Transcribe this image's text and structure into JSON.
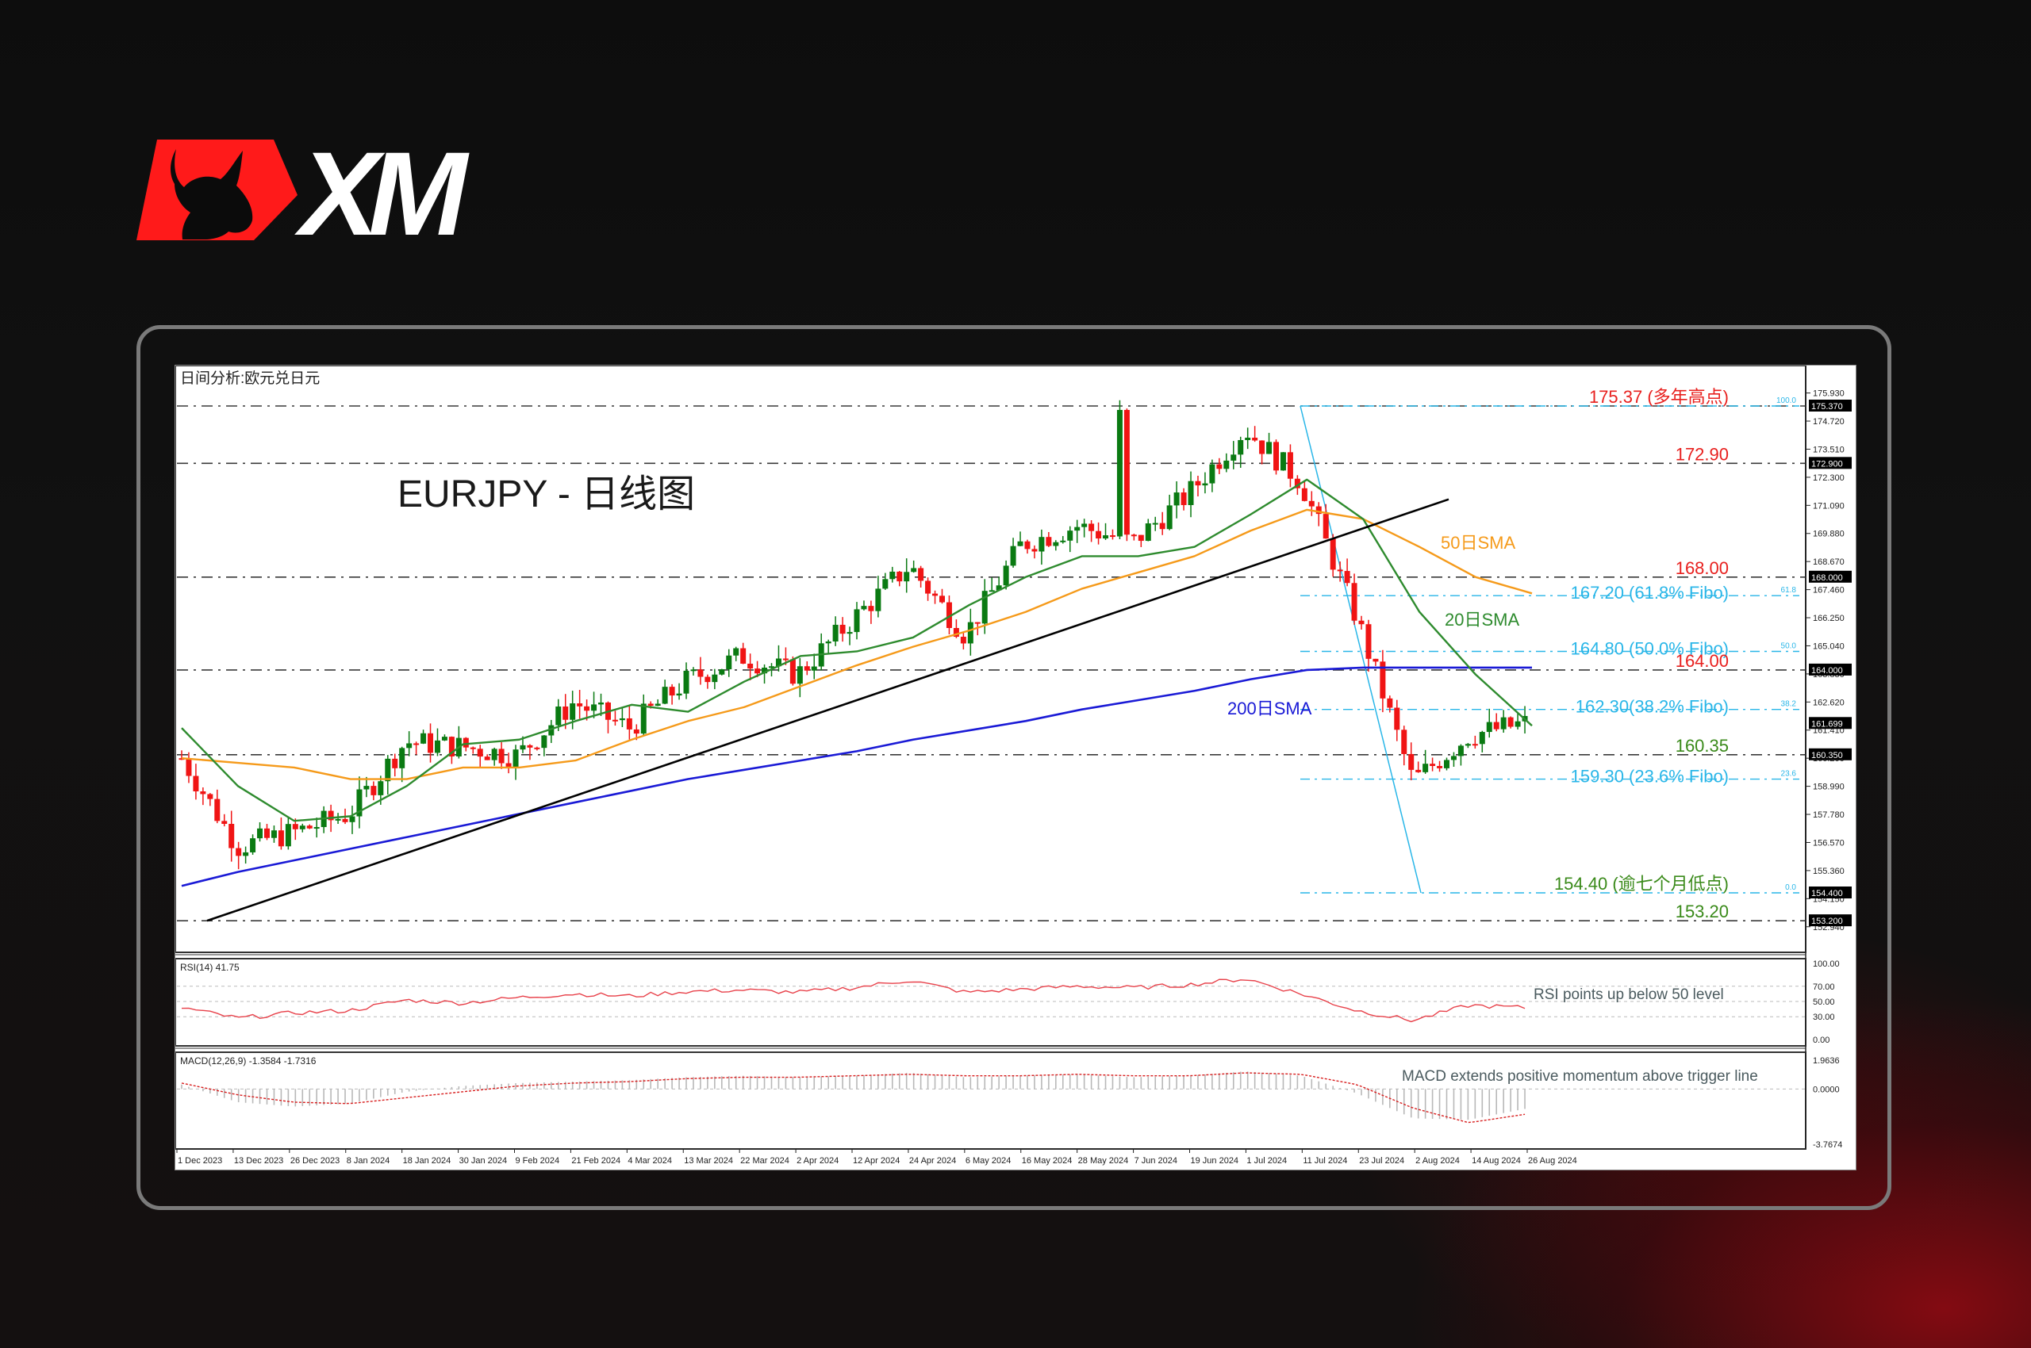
{
  "brand": {
    "logo_text": "XM",
    "logo_red": "#ff1a1a",
    "logo_white": "#ffffff"
  },
  "chart_header": {
    "title": "日间分析:欧元兑日元",
    "headline": "EURJPY - 日线图"
  },
  "colors": {
    "bull": "#0a7a12",
    "bear": "#f01414",
    "sma20": "#2e8b2e",
    "sma50": "#f59a1a",
    "sma200": "#1a1ad6",
    "trendline": "#000000",
    "fibo": "#29b6e8",
    "level_red": "#e8201e",
    "level_green": "#3a8a1a",
    "rsi_line": "#e8414a",
    "macd_signal": "#d81e1e",
    "macd_hist": "#b8b8b8",
    "annotation": "#4a5a5e"
  },
  "price_axis": {
    "ticks": [
      "175.930",
      "174.720",
      "173.510",
      "172.300",
      "171.090",
      "169.880",
      "168.670",
      "167.460",
      "166.250",
      "165.040",
      "163.830",
      "162.620",
      "161.410",
      "160.200",
      "158.990",
      "157.780",
      "156.570",
      "155.360",
      "154.150",
      "152.940"
    ],
    "tick_values": [
      175.93,
      174.72,
      173.51,
      172.3,
      171.09,
      169.88,
      168.67,
      167.46,
      166.25,
      165.04,
      163.83,
      162.62,
      161.41,
      160.2,
      158.99,
      157.78,
      156.57,
      155.36,
      154.15,
      152.94
    ],
    "price_tags": [
      {
        "label": "175.370",
        "value": 175.37
      },
      {
        "label": "172.900",
        "value": 172.9
      },
      {
        "label": "168.000",
        "value": 168.0
      },
      {
        "label": "164.000",
        "value": 164.0
      },
      {
        "label": "161.699",
        "value": 161.699
      },
      {
        "label": "160.350",
        "value": 160.35
      },
      {
        "label": "154.400",
        "value": 154.4
      },
      {
        "label": "153.200",
        "value": 153.2
      }
    ]
  },
  "levels": [
    {
      "value": 175.37,
      "label": "175.37 (多年高点)",
      "color": "red",
      "style": "dashdot"
    },
    {
      "value": 172.9,
      "label": "172.90",
      "color": "red",
      "style": "dashdot"
    },
    {
      "value": 168.0,
      "label": "168.00",
      "color": "red",
      "style": "dashdot"
    },
    {
      "value": 164.0,
      "label": "164.00",
      "color": "red",
      "style": "dashdot"
    },
    {
      "value": 160.35,
      "label": "160.35",
      "color": "green",
      "style": "dashdot"
    },
    {
      "value": 153.2,
      "label": "153.20",
      "color": "green",
      "style": "dashdot"
    }
  ],
  "fibo_levels": [
    {
      "value": 175.37,
      "pct": "100.0"
    },
    {
      "value": 167.2,
      "pct": "61.8",
      "label": "167.20 (61.8% Fibo)"
    },
    {
      "value": 164.8,
      "pct": "50.0",
      "label": "164.80 (50.0% Fibo)"
    },
    {
      "value": 162.3,
      "pct": "38.2",
      "label": "162.30(38.2% Fibo)"
    },
    {
      "value": 159.3,
      "pct": "23.6",
      "label": "159.30 (23.6% Fibo)"
    },
    {
      "value": 154.4,
      "pct": "0.0",
      "label": "154.40 (逾七个月低点)"
    }
  ],
  "ma_labels": {
    "sma50": "50日SMA",
    "sma20": "20日SMA",
    "sma200": "200日SMA"
  },
  "rsi": {
    "title": "RSI(14) 41.75",
    "annotation": "RSI points up below 50 level",
    "axis": [
      "100.00",
      "70.00",
      "50.00",
      "30.00",
      "0.00"
    ]
  },
  "macd": {
    "title": "MACD(12,26,9) -1.3584 -1.7316",
    "annotation": "MACD extends positive momentum above trigger line",
    "axis": [
      "1.9636",
      "0.0000",
      "-3.7674"
    ]
  },
  "time_axis": [
    "1 Dec 2023",
    "13 Dec 2023",
    "26 Dec 2023",
    "8 Jan 2024",
    "18 Jan 2024",
    "30 Jan 2024",
    "9 Feb 2024",
    "21 Feb 2024",
    "4 Mar 2024",
    "13 Mar 2024",
    "22 Mar 2024",
    "2 Apr 2024",
    "12 Apr 2024",
    "24 Apr 2024",
    "6 May 2024",
    "16 May 2024",
    "28 May 2024",
    "7 Jun 2024",
    "19 Jun 2024",
    "1 Jul 2024",
    "11 Jul 2024",
    "23 Jul 2024",
    "2 Aug 2024",
    "14 Aug 2024",
    "26 Aug 2024"
  ],
  "chart_data": {
    "type": "line",
    "title": "EURJPY - 日线图",
    "subtitle": "日间分析:欧元兑日元",
    "xlabel": "",
    "ylabel": "EURJPY",
    "ylim": [
      152.94,
      175.93
    ],
    "grid": false,
    "x": [
      "1 Dec 2023",
      "13 Dec 2023",
      "26 Dec 2023",
      "8 Jan 2024",
      "18 Jan 2024",
      "30 Jan 2024",
      "9 Feb 2024",
      "21 Feb 2024",
      "4 Mar 2024",
      "13 Mar 2024",
      "22 Mar 2024",
      "2 Apr 2024",
      "12 Apr 2024",
      "24 Apr 2024",
      "6 May 2024",
      "16 May 2024",
      "28 May 2024",
      "7 Jun 2024",
      "19 Jun 2024",
      "1 Jul 2024",
      "11 Jul 2024",
      "23 Jul 2024",
      "2 Aug 2024",
      "14 Aug 2024",
      "26 Aug 2024"
    ],
    "series": [
      {
        "name": "EURJPY close (approx)",
        "values": [
          160.2,
          156.4,
          157.0,
          157.8,
          160.9,
          160.7,
          160.3,
          162.6,
          161.5,
          163.5,
          164.6,
          163.8,
          166.2,
          168.5,
          165.5,
          169.4,
          170.2,
          169.5,
          171.6,
          174.4,
          172.1,
          166.2,
          159.2,
          161.2,
          161.7
        ]
      },
      {
        "name": "20日SMA",
        "values": [
          161.5,
          159.0,
          157.5,
          157.7,
          159.0,
          160.8,
          161.0,
          161.8,
          162.5,
          162.2,
          163.5,
          164.6,
          164.8,
          165.4,
          166.8,
          168.0,
          168.9,
          168.9,
          169.3,
          170.7,
          172.2,
          170.5,
          166.5,
          163.8,
          161.6
        ]
      },
      {
        "name": "50日SMA",
        "values": [
          160.2,
          160.0,
          159.8,
          159.3,
          159.3,
          159.8,
          159.8,
          160.1,
          161.0,
          161.8,
          162.4,
          163.3,
          164.2,
          165.0,
          165.7,
          166.5,
          167.5,
          168.2,
          168.9,
          170.0,
          170.9,
          170.5,
          169.3,
          168.0,
          167.3
        ]
      },
      {
        "name": "200日SMA",
        "values": [
          154.7,
          155.3,
          155.8,
          156.3,
          156.8,
          157.3,
          157.8,
          158.3,
          158.8,
          159.3,
          159.7,
          160.1,
          160.5,
          161.0,
          161.4,
          161.8,
          162.3,
          162.7,
          163.1,
          163.6,
          164.0,
          164.1,
          164.1,
          164.1,
          164.1
        ]
      },
      {
        "name": "RSI(14)",
        "values": [
          42,
          28,
          35,
          38,
          52,
          48,
          55,
          60,
          57,
          63,
          65,
          62,
          68,
          78,
          62,
          66,
          70,
          68,
          72,
          80,
          60,
          38,
          25,
          45,
          41.75
        ]
      },
      {
        "name": "MACD histogram",
        "values": [
          0.3,
          -0.9,
          -1.2,
          -1.0,
          -0.2,
          0.2,
          0.4,
          0.5,
          0.6,
          0.8,
          0.9,
          0.8,
          0.9,
          1.1,
          0.8,
          0.9,
          1.0,
          0.8,
          0.9,
          1.2,
          0.9,
          -0.3,
          -2.0,
          -2.1,
          -1.36
        ]
      },
      {
        "name": "MACD signal",
        "values": [
          0.4,
          -0.4,
          -0.9,
          -1.0,
          -0.6,
          -0.2,
          0.2,
          0.4,
          0.5,
          0.7,
          0.8,
          0.8,
          0.9,
          1.0,
          0.9,
          0.9,
          1.0,
          0.9,
          0.9,
          1.1,
          1.0,
          0.3,
          -1.3,
          -2.3,
          -1.73
        ]
      }
    ],
    "annotations": [
      "175.37 (多年高点)",
      "172.90",
      "168.00",
      "167.20 (61.8% Fibo)",
      "164.80 (50.0% Fibo)",
      "164.00",
      "162.30(38.2% Fibo)",
      "160.35",
      "159.30 (23.6% Fibo)",
      "154.40 (逾七个月低点)",
      "153.20",
      "50日SMA",
      "20日SMA",
      "200日SMA",
      "RSI points up below 50 level",
      "MACD extends positive momentum above trigger line"
    ],
    "legend_position": "none"
  }
}
